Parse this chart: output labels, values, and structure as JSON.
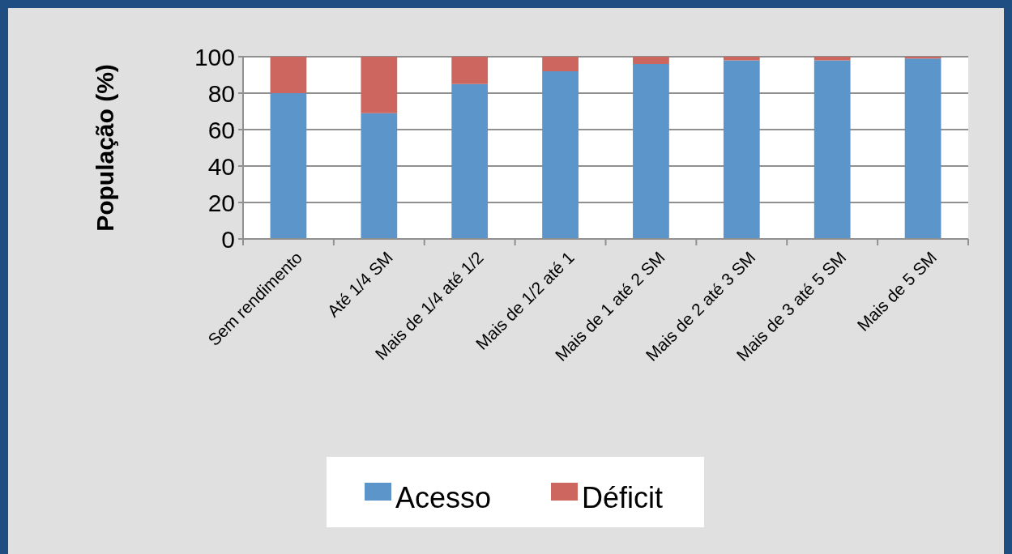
{
  "chart_data": {
    "type": "bar",
    "stacked": true,
    "ylabel": "População (%)",
    "categories": [
      "Sem rendimento",
      "Até 1/4 SM",
      "Mais de 1/4 até 1/2",
      "Mais de 1/2 até 1",
      "Mais de 1 até 2 SM",
      "Mais de 2 até 3 SM",
      "Mais de 3 até 5 SM",
      "Mais de 5 SM"
    ],
    "series": [
      {
        "name": "Acesso",
        "color": "#5b95c9",
        "values": [
          80,
          69,
          85,
          92,
          96,
          98,
          98,
          99
        ]
      },
      {
        "name": "Déficit",
        "color": "#cd665e",
        "values": [
          20,
          31,
          15,
          8,
          4,
          2,
          2,
          1
        ]
      }
    ],
    "ylim": [
      0,
      100
    ],
    "yticks": [
      0,
      20,
      40,
      60,
      80,
      100
    ],
    "grid": "y",
    "legend": "bottom"
  }
}
